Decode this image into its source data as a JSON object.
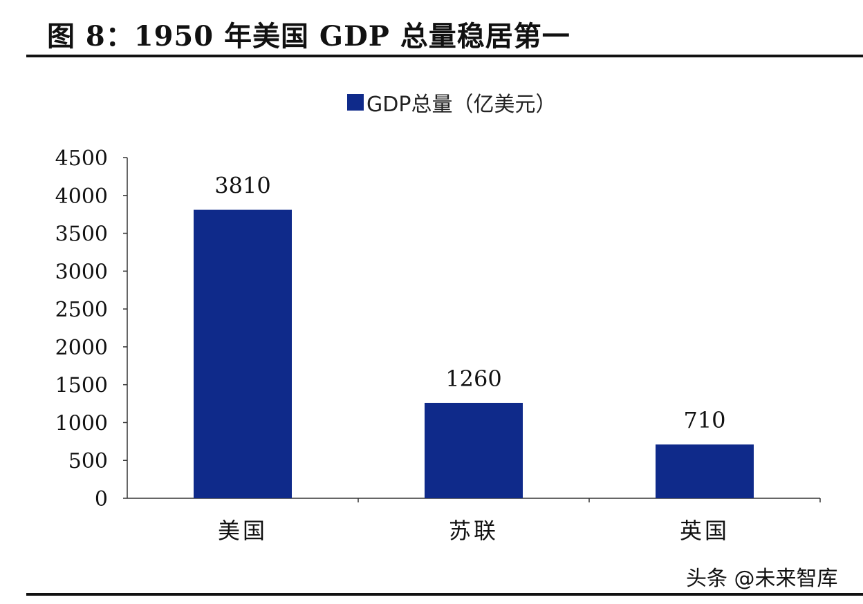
{
  "figure": {
    "title": "图 8：1950 年美国 GDP 总量稳居第一"
  },
  "watermark": "头条 @未来智库",
  "chart_data": {
    "type": "bar",
    "categories": [
      "美国",
      "苏联",
      "英国"
    ],
    "series": [
      {
        "name": "GDP总量（亿美元）",
        "values": [
          3810,
          1260,
          710
        ],
        "color": "#0f2a8a"
      }
    ],
    "data_labels": [
      "3810",
      "1260",
      "710"
    ],
    "y_ticks": [
      0,
      500,
      1000,
      1500,
      2000,
      2500,
      3000,
      3500,
      4000,
      4500
    ],
    "ylim": [
      0,
      4500
    ],
    "xlabel": "",
    "ylabel": "",
    "grid": false,
    "legend_position": "top-center"
  }
}
